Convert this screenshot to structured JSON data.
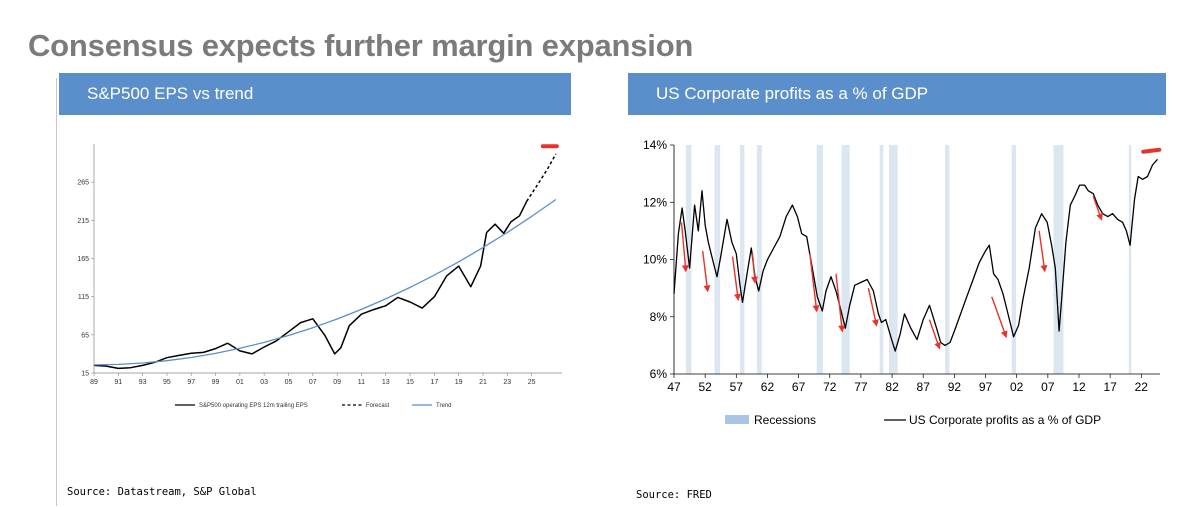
{
  "page": {
    "title": "Consensus expects further margin expansion"
  },
  "chart_data": [
    {
      "type": "line",
      "title": "S&P500 EPS vs trend",
      "source": "Source: Datastream, S&P Global",
      "xlabel": "",
      "ylabel": "",
      "xlim": [
        1989,
        2027.5
      ],
      "ylim": [
        15,
        315
      ],
      "x_ticks": [
        "89",
        "91",
        "93",
        "95",
        "97",
        "99",
        "01",
        "03",
        "05",
        "07",
        "09",
        "11",
        "13",
        "15",
        "17",
        "19",
        "21",
        "23",
        "25"
      ],
      "y_ticks": [
        15,
        65,
        115,
        165,
        215,
        265
      ],
      "legend_position": "bottom",
      "grid": false,
      "series": [
        {
          "name": "S&P500 operating EPS 12m trailing EPS",
          "color": "#000000",
          "style": "solid",
          "points": [
            [
              1989,
              25
            ],
            [
              1990,
              24
            ],
            [
              1991,
              21
            ],
            [
              1992,
              22
            ],
            [
              1993,
              25
            ],
            [
              1994,
              29
            ],
            [
              1995,
              35
            ],
            [
              1996,
              38
            ],
            [
              1997,
              41
            ],
            [
              1998,
              42
            ],
            [
              1999,
              47
            ],
            [
              2000,
              54
            ],
            [
              2001,
              44
            ],
            [
              2002,
              40
            ],
            [
              2003,
              49
            ],
            [
              2004,
              57
            ],
            [
              2005,
              69
            ],
            [
              2006,
              81
            ],
            [
              2007,
              86
            ],
            [
              2008,
              64
            ],
            [
              2008.8,
              40
            ],
            [
              2009.3,
              48
            ],
            [
              2010,
              77
            ],
            [
              2011,
              92
            ],
            [
              2012,
              98
            ],
            [
              2013,
              103
            ],
            [
              2014,
              114
            ],
            [
              2015,
              108
            ],
            [
              2016,
              100
            ],
            [
              2017,
              115
            ],
            [
              2018,
              142
            ],
            [
              2019,
              155
            ],
            [
              2020,
              128
            ],
            [
              2020.8,
              155
            ],
            [
              2021.3,
              199
            ],
            [
              2022,
              210
            ],
            [
              2022.7,
              198
            ],
            [
              2023.3,
              213
            ],
            [
              2024,
              221
            ],
            [
              2024.6,
              240
            ]
          ]
        },
        {
          "name": "Forecast",
          "color": "#000000",
          "style": "dashed",
          "points": [
            [
              2024.6,
              240
            ],
            [
              2025.5,
              262
            ],
            [
              2026.3,
              282
            ],
            [
              2027,
              302
            ]
          ]
        },
        {
          "name": "Trend",
          "color": "#5b8fcb",
          "style": "solid",
          "points": [
            [
              1989,
              25.6
            ],
            [
              1991,
              26.3
            ],
            [
              1993,
              28.1
            ],
            [
              1995,
              31.1
            ],
            [
              1997,
              35.3
            ],
            [
              1999,
              40.7
            ],
            [
              2001,
              47.3
            ],
            [
              2003,
              55.1
            ],
            [
              2005,
              64.1
            ],
            [
              2007,
              74.3
            ],
            [
              2009,
              85.7
            ],
            [
              2011,
              98.3
            ],
            [
              2013,
              112.1
            ],
            [
              2015,
              127.1
            ],
            [
              2017,
              143.3
            ],
            [
              2019,
              160.7
            ],
            [
              2021,
              179.3
            ],
            [
              2023,
              199.1
            ],
            [
              2025,
              220.1
            ],
            [
              2027,
              242.3
            ]
          ]
        }
      ],
      "annotations": [
        {
          "type": "red-marker",
          "x": 2026.5,
          "y": 312
        }
      ]
    },
    {
      "type": "line",
      "title": "US Corporate profits as a % of GDP",
      "source": "Source: FRED",
      "xlabel": "",
      "ylabel": "",
      "xlim": [
        1947,
        2025
      ],
      "ylim": [
        6,
        14
      ],
      "y_unit": "%",
      "x_ticks": [
        "47",
        "52",
        "57",
        "62",
        "67",
        "72",
        "77",
        "82",
        "87",
        "92",
        "97",
        "02",
        "07",
        "12",
        "17",
        "22"
      ],
      "y_ticks": [
        "6%",
        "8%",
        "10%",
        "12%",
        "14%"
      ],
      "legend_position": "bottom",
      "grid": false,
      "recessions": [
        [
          1948.9,
          1949.8
        ],
        [
          1953.5,
          1954.4
        ],
        [
          1957.6,
          1958.3
        ],
        [
          1960.3,
          1961.1
        ],
        [
          1969.9,
          1970.9
        ],
        [
          1973.9,
          1975.2
        ],
        [
          1980.0,
          1980.6
        ],
        [
          1981.5,
          1982.9
        ],
        [
          1990.5,
          1991.2
        ],
        [
          2001.2,
          2001.9
        ],
        [
          2007.9,
          2009.5
        ],
        [
          2020.0,
          2020.4
        ]
      ],
      "series": [
        {
          "name": "US Corporate profits as a % of GDP",
          "color": "#000000",
          "style": "solid",
          "points": [
            [
              1947,
              8.8
            ],
            [
              1947.7,
              10.9
            ],
            [
              1948.3,
              11.8
            ],
            [
              1948.8,
              11.0
            ],
            [
              1949.5,
              9.7
            ],
            [
              1950.3,
              11.9
            ],
            [
              1950.9,
              11.0
            ],
            [
              1951.5,
              12.4
            ],
            [
              1952,
              11.2
            ],
            [
              1952.5,
              10.6
            ],
            [
              1953.3,
              9.9
            ],
            [
              1953.9,
              9.4
            ],
            [
              1954.5,
              10.1
            ],
            [
              1955.5,
              11.4
            ],
            [
              1956.3,
              10.6
            ],
            [
              1957,
              10.2
            ],
            [
              1957.6,
              9.1
            ],
            [
              1958,
              8.5
            ],
            [
              1958.8,
              9.6
            ],
            [
              1959.4,
              10.4
            ],
            [
              1960,
              9.4
            ],
            [
              1960.6,
              8.9
            ],
            [
              1961.3,
              9.6
            ],
            [
              1962,
              10.0
            ],
            [
              1963,
              10.4
            ],
            [
              1964,
              10.8
            ],
            [
              1965,
              11.5
            ],
            [
              1966,
              11.9
            ],
            [
              1966.8,
              11.5
            ],
            [
              1967.5,
              10.9
            ],
            [
              1968.3,
              10.8
            ],
            [
              1969.2,
              9.7
            ],
            [
              1970,
              8.7
            ],
            [
              1970.8,
              8.2
            ],
            [
              1971.4,
              8.9
            ],
            [
              1972.2,
              9.4
            ],
            [
              1973,
              8.9
            ],
            [
              1973.7,
              8.3
            ],
            [
              1974.5,
              7.6
            ],
            [
              1975.2,
              8.4
            ],
            [
              1976,
              9.1
            ],
            [
              1977,
              9.2
            ],
            [
              1978,
              9.3
            ],
            [
              1979,
              8.9
            ],
            [
              1979.8,
              8.1
            ],
            [
              1980.3,
              7.8
            ],
            [
              1981,
              7.9
            ],
            [
              1981.8,
              7.3
            ],
            [
              1982.5,
              6.8
            ],
            [
              1983.3,
              7.4
            ],
            [
              1984,
              8.1
            ],
            [
              1985,
              7.6
            ],
            [
              1986,
              7.2
            ],
            [
              1987,
              7.9
            ],
            [
              1988,
              8.4
            ],
            [
              1989,
              7.7
            ],
            [
              1989.8,
              7.1
            ],
            [
              1990.5,
              7.0
            ],
            [
              1991.3,
              7.1
            ],
            [
              1992,
              7.5
            ],
            [
              1993,
              8.1
            ],
            [
              1994,
              8.7
            ],
            [
              1995,
              9.3
            ],
            [
              1996,
              9.9
            ],
            [
              1997,
              10.3
            ],
            [
              1997.6,
              10.5
            ],
            [
              1998.3,
              9.5
            ],
            [
              1999,
              9.3
            ],
            [
              1999.8,
              8.8
            ],
            [
              2000.6,
              8.1
            ],
            [
              2001.5,
              7.3
            ],
            [
              2002.3,
              7.7
            ],
            [
              2003,
              8.6
            ],
            [
              2004,
              9.7
            ],
            [
              2005,
              11.1
            ],
            [
              2006,
              11.6
            ],
            [
              2006.9,
              11.3
            ],
            [
              2007.6,
              10.5
            ],
            [
              2008.2,
              9.7
            ],
            [
              2008.8,
              7.5
            ],
            [
              2009.2,
              8.6
            ],
            [
              2009.9,
              10.6
            ],
            [
              2010.6,
              11.9
            ],
            [
              2011.3,
              12.2
            ],
            [
              2012.1,
              12.6
            ],
            [
              2012.9,
              12.6
            ],
            [
              2013.5,
              12.4
            ],
            [
              2014.3,
              12.3
            ],
            [
              2015,
              11.9
            ],
            [
              2015.8,
              11.6
            ],
            [
              2016.6,
              11.5
            ],
            [
              2017.4,
              11.6
            ],
            [
              2018.2,
              11.4
            ],
            [
              2019,
              11.3
            ],
            [
              2019.6,
              11.0
            ],
            [
              2020.2,
              10.5
            ],
            [
              2020.9,
              12.1
            ],
            [
              2021.5,
              12.9
            ],
            [
              2022.2,
              12.8
            ],
            [
              2023,
              12.9
            ],
            [
              2023.8,
              13.3
            ],
            [
              2024.6,
              13.5
            ]
          ]
        }
      ],
      "legend": [
        "Recessions",
        "US Corporate profits as a % of GDP"
      ],
      "annotations": [
        {
          "type": "red-arrow",
          "from": [
            1948.2,
            11.3
          ],
          "to": [
            1948.9,
            9.6
          ]
        },
        {
          "type": "red-arrow",
          "from": [
            1951.6,
            10.3
          ],
          "to": [
            1952.4,
            8.9
          ]
        },
        {
          "type": "red-arrow",
          "from": [
            1956.4,
            10.1
          ],
          "to": [
            1957.3,
            8.6
          ]
        },
        {
          "type": "red-arrow",
          "from": [
            1959.6,
            10.2
          ],
          "to": [
            1960.0,
            9.2
          ]
        },
        {
          "type": "red-arrow",
          "from": [
            1968.8,
            10.2
          ],
          "to": [
            1969.9,
            8.2
          ]
        },
        {
          "type": "red-arrow",
          "from": [
            1973.0,
            9.5
          ],
          "to": [
            1974.0,
            7.5
          ]
        },
        {
          "type": "red-arrow",
          "from": [
            1978.2,
            9.0
          ],
          "to": [
            1979.5,
            7.7
          ]
        },
        {
          "type": "red-arrow",
          "from": [
            1988.0,
            7.9
          ],
          "to": [
            1989.6,
            6.9
          ]
        },
        {
          "type": "red-arrow",
          "from": [
            1998.0,
            8.7
          ],
          "to": [
            2000.3,
            7.3
          ]
        },
        {
          "type": "red-arrow",
          "from": [
            2005.6,
            11.0
          ],
          "to": [
            2006.5,
            9.6
          ]
        },
        {
          "type": "red-arrow",
          "from": [
            2014.3,
            12.2
          ],
          "to": [
            2015.6,
            11.4
          ]
        },
        {
          "type": "red-marker",
          "x": 2023.6,
          "y": 13.8
        }
      ]
    }
  ]
}
